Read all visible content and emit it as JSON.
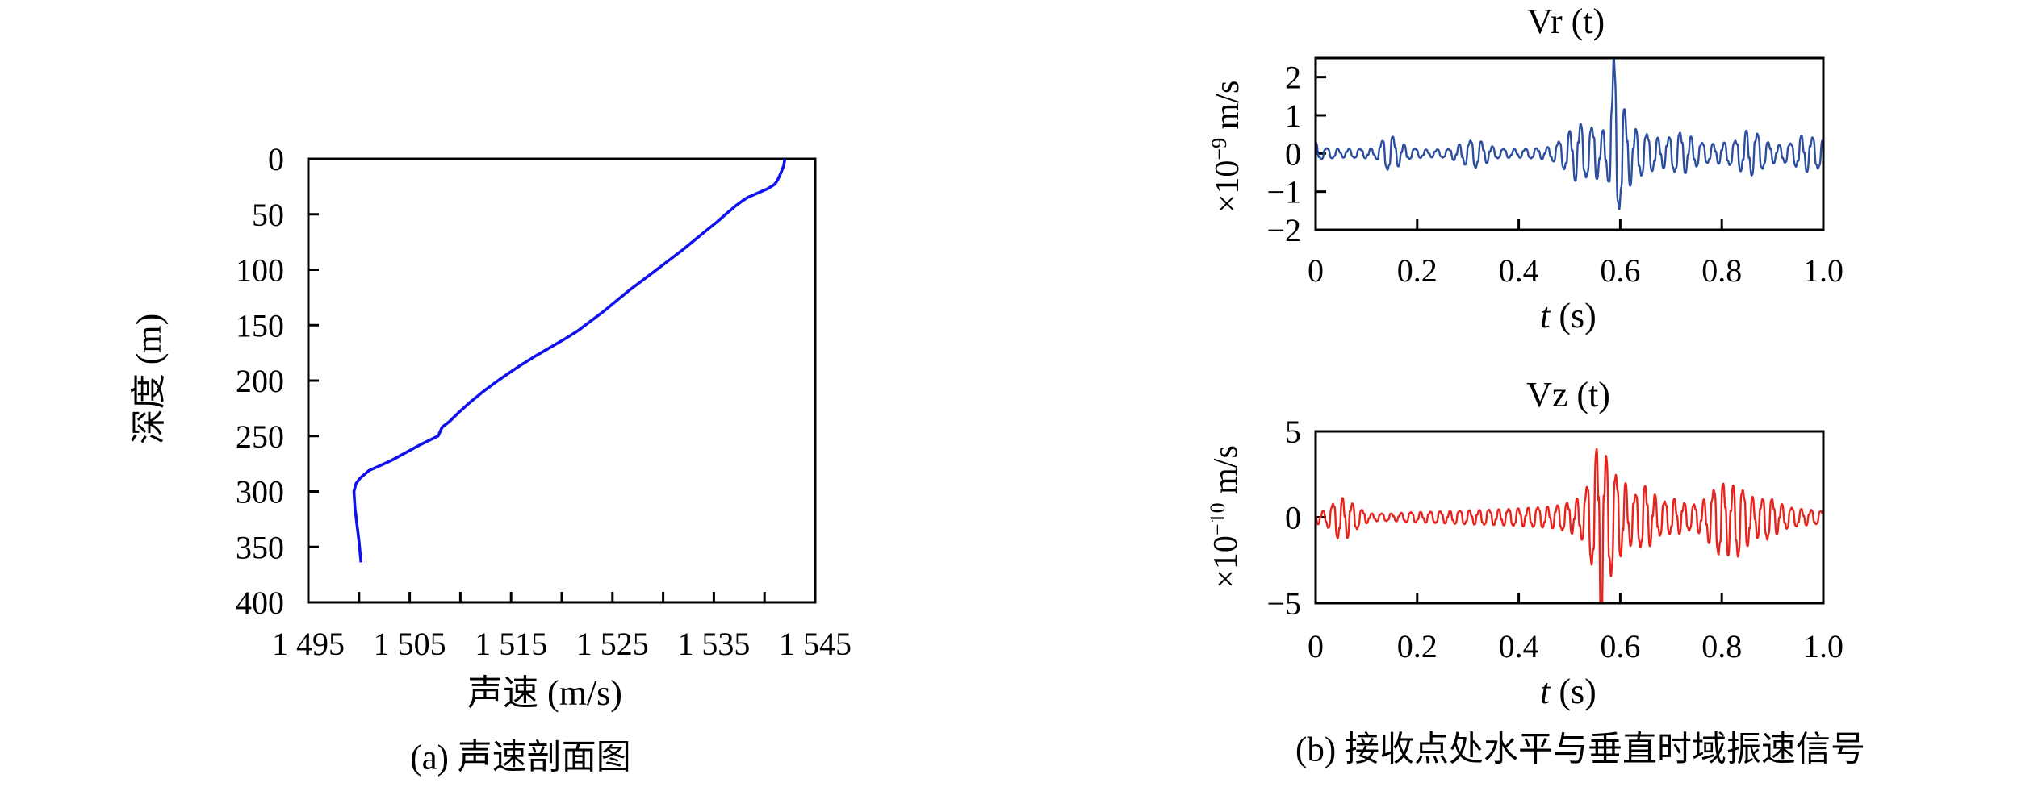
{
  "figure": {
    "panel_a": {
      "caption": "(a) 声速剖面图",
      "xlabel": "声速 (m/s)",
      "ylabel": "深度 (m)"
    },
    "panel_b": {
      "caption": "(b) 接收点处水平与垂直时域振速信号",
      "vr": {
        "title": "Vr (t)",
        "ylabel_prefix": "×10",
        "ylabel_exp": "−9",
        "ylabel_unit": " m/s",
        "xlabel_var": "t",
        "xlabel_unit": " (s)"
      },
      "vz": {
        "title": "Vz (t)",
        "ylabel_prefix": "×10",
        "ylabel_exp": "−10",
        "ylabel_unit": " m/s",
        "xlabel_var": "t",
        "xlabel_unit": " (s)"
      }
    }
  },
  "chart_data": [
    {
      "id": "sound-speed-profile",
      "type": "line",
      "title": "",
      "xlabel": "声速 (m/s)",
      "ylabel": "深度 (m)",
      "xlim": [
        1495,
        1545
      ],
      "ylim_depth": [
        0,
        400
      ],
      "y_axis_inverted": true,
      "grid": false,
      "line_color": "#1111ee",
      "xtick_values": [
        1495,
        1500,
        1505,
        1510,
        1515,
        1520,
        1525,
        1530,
        1535,
        1540,
        1545
      ],
      "xtick_labels": [
        "1 495",
        "",
        "1 505",
        "",
        "1 515",
        "",
        "1 525",
        "",
        "1 535",
        "",
        "1 545"
      ],
      "ytick_values": [
        0,
        50,
        100,
        150,
        200,
        250,
        300,
        350,
        400
      ],
      "ytick_labels": [
        "0",
        "50",
        "100",
        "150",
        "200",
        "250",
        "300",
        "350",
        "400"
      ],
      "series_name": "sound speed profile",
      "points_speed_depth": [
        [
          1542.0,
          0
        ],
        [
          1541.9,
          6
        ],
        [
          1541.6,
          13
        ],
        [
          1541.3,
          19
        ],
        [
          1541.0,
          23
        ],
        [
          1540.3,
          27
        ],
        [
          1539.3,
          31
        ],
        [
          1538.3,
          35
        ],
        [
          1537.8,
          38
        ],
        [
          1537.2,
          42
        ],
        [
          1536.3,
          49
        ],
        [
          1535.3,
          57
        ],
        [
          1534.2,
          65
        ],
        [
          1533.0,
          74
        ],
        [
          1531.8,
          83
        ],
        [
          1530.5,
          92
        ],
        [
          1529.2,
          101
        ],
        [
          1527.9,
          110
        ],
        [
          1526.6,
          119
        ],
        [
          1525.4,
          128
        ],
        [
          1524.2,
          137
        ],
        [
          1522.9,
          146
        ],
        [
          1521.6,
          155
        ],
        [
          1520.2,
          163
        ],
        [
          1518.7,
          171
        ],
        [
          1517.2,
          179
        ],
        [
          1515.8,
          187
        ],
        [
          1514.5,
          195
        ],
        [
          1513.4,
          202
        ],
        [
          1512.1,
          211
        ],
        [
          1510.9,
          220
        ],
        [
          1509.8,
          229
        ],
        [
          1508.9,
          237
        ],
        [
          1508.2,
          242
        ],
        [
          1507.8,
          250
        ],
        [
          1506.0,
          258
        ],
        [
          1504.6,
          265
        ],
        [
          1503.2,
          272
        ],
        [
          1502.0,
          277
        ],
        [
          1501.0,
          281
        ],
        [
          1500.1,
          288
        ],
        [
          1499.7,
          293
        ],
        [
          1499.5,
          300
        ],
        [
          1499.6,
          315
        ],
        [
          1499.8,
          330
        ],
        [
          1500.0,
          345
        ],
        [
          1500.2,
          364
        ]
      ]
    },
    {
      "id": "vr-signal",
      "type": "line",
      "title": "Vr (t)",
      "xlabel": "t (s)",
      "ylabel": "×10−9 m/s",
      "xlim": [
        0,
        1
      ],
      "ylim": [
        -2,
        2.5
      ],
      "grid": false,
      "line_color": "#2b4ea0",
      "xtick_values": [
        0,
        0.2,
        0.4,
        0.6,
        0.8,
        1.0
      ],
      "xtick_labels": [
        "0",
        "0.2",
        "0.4",
        "0.6",
        "0.8",
        "1.0"
      ],
      "ytick_values": [
        2,
        1,
        0,
        -1,
        -2
      ],
      "ytick_labels": [
        "2",
        "1",
        "0",
        "−1",
        "−2"
      ],
      "signal_model": {
        "carrier_hz": 46,
        "spike_time": 0.5872,
        "peak_value": 2.6,
        "min_value": -1.6,
        "envelope": [
          [
            0,
            0.3
          ],
          [
            0.01,
            0.15
          ],
          [
            0.05,
            0.11
          ],
          [
            0.09,
            0.12
          ],
          [
            0.12,
            0.14
          ],
          [
            0.135,
            0.4
          ],
          [
            0.15,
            0.46
          ],
          [
            0.165,
            0.32
          ],
          [
            0.185,
            0.14
          ],
          [
            0.22,
            0.1
          ],
          [
            0.26,
            0.11
          ],
          [
            0.295,
            0.3
          ],
          [
            0.315,
            0.38
          ],
          [
            0.335,
            0.26
          ],
          [
            0.36,
            0.12
          ],
          [
            0.4,
            0.11
          ],
          [
            0.44,
            0.14
          ],
          [
            0.465,
            0.18
          ],
          [
            0.49,
            0.42
          ],
          [
            0.505,
            0.66
          ],
          [
            0.52,
            0.8
          ],
          [
            0.535,
            0.6
          ],
          [
            0.55,
            0.74
          ],
          [
            0.565,
            0.58
          ],
          [
            0.578,
            1.0
          ],
          [
            0.5872,
            2.6
          ],
          [
            0.5955,
            1.7
          ],
          [
            0.605,
            1.3
          ],
          [
            0.617,
            0.85
          ],
          [
            0.633,
            0.6
          ],
          [
            0.65,
            0.52
          ],
          [
            0.665,
            0.44
          ],
          [
            0.685,
            0.38
          ],
          [
            0.7,
            0.44
          ],
          [
            0.72,
            0.56
          ],
          [
            0.735,
            0.48
          ],
          [
            0.755,
            0.3
          ],
          [
            0.775,
            0.24
          ],
          [
            0.8,
            0.28
          ],
          [
            0.825,
            0.32
          ],
          [
            0.85,
            0.62
          ],
          [
            0.87,
            0.52
          ],
          [
            0.89,
            0.3
          ],
          [
            0.915,
            0.22
          ],
          [
            0.94,
            0.28
          ],
          [
            0.962,
            0.52
          ],
          [
            0.978,
            0.42
          ],
          [
            1.0,
            0.38
          ]
        ],
        "neg_gain": [
          [
            0,
            1.0
          ],
          [
            0.55,
            1.0
          ],
          [
            0.585,
            0.7
          ],
          [
            0.6,
            0.95
          ],
          [
            0.62,
            1.05
          ],
          [
            0.7,
            1.0
          ],
          [
            1.0,
            1.0
          ]
        ]
      }
    },
    {
      "id": "vz-signal",
      "type": "line",
      "title": "Vz (t)",
      "xlabel": "t (s)",
      "ylabel": "×10−10 m/s",
      "xlim": [
        0,
        1
      ],
      "ylim": [
        -5,
        5
      ],
      "grid": false,
      "line_color": "#e8231c",
      "xtick_values": [
        0,
        0.2,
        0.4,
        0.6,
        0.8,
        1.0
      ],
      "xtick_labels": [
        "0",
        "0.2",
        "0.4",
        "0.6",
        "0.8",
        "1.0"
      ],
      "ytick_values": [
        5,
        0,
        -5
      ],
      "ytick_labels": [
        "5",
        "0",
        "−5"
      ],
      "signal_model": {
        "carrier_hz": 52,
        "spike_time": 0.553,
        "peak_value": 3.9,
        "min_value": -5.0,
        "envelope": [
          [
            0,
            0.35
          ],
          [
            0.02,
            0.4
          ],
          [
            0.04,
            0.95
          ],
          [
            0.055,
            1.15
          ],
          [
            0.07,
            0.85
          ],
          [
            0.09,
            0.45
          ],
          [
            0.11,
            0.22
          ],
          [
            0.15,
            0.22
          ],
          [
            0.19,
            0.3
          ],
          [
            0.23,
            0.33
          ],
          [
            0.27,
            0.38
          ],
          [
            0.31,
            0.42
          ],
          [
            0.35,
            0.45
          ],
          [
            0.39,
            0.5
          ],
          [
            0.42,
            0.55
          ],
          [
            0.45,
            0.6
          ],
          [
            0.47,
            0.65
          ],
          [
            0.49,
            0.8
          ],
          [
            0.51,
            1.0
          ],
          [
            0.53,
            1.4
          ],
          [
            0.545,
            2.8
          ],
          [
            0.553,
            3.9
          ],
          [
            0.558,
            5.2
          ],
          [
            0.565,
            4.5
          ],
          [
            0.575,
            3.2
          ],
          [
            0.585,
            2.6
          ],
          [
            0.595,
            2.4
          ],
          [
            0.605,
            2.2
          ],
          [
            0.615,
            1.8
          ],
          [
            0.63,
            1.3
          ],
          [
            0.645,
            1.9
          ],
          [
            0.66,
            1.6
          ],
          [
            0.675,
            1.1
          ],
          [
            0.69,
            0.9
          ],
          [
            0.705,
            1.1
          ],
          [
            0.72,
            0.9
          ],
          [
            0.74,
            0.7
          ],
          [
            0.76,
            0.9
          ],
          [
            0.78,
            1.5
          ],
          [
            0.8,
            2.0
          ],
          [
            0.815,
            1.8
          ],
          [
            0.83,
            1.9
          ],
          [
            0.845,
            1.5
          ],
          [
            0.86,
            1.2
          ],
          [
            0.875,
            1.0
          ],
          [
            0.89,
            1.2
          ],
          [
            0.91,
            0.9
          ],
          [
            0.93,
            0.6
          ],
          [
            0.95,
            0.5
          ],
          [
            0.97,
            0.45
          ],
          [
            1.0,
            0.35
          ]
        ],
        "neg_gain": [
          [
            0,
            1.1
          ],
          [
            0.05,
            1.25
          ],
          [
            0.09,
            1.1
          ],
          [
            0.13,
            1.0
          ],
          [
            0.5,
            1.0
          ],
          [
            0.553,
            1.05
          ],
          [
            0.56,
            1.35
          ],
          [
            0.58,
            1.25
          ],
          [
            0.6,
            1.0
          ],
          [
            0.64,
            1.05
          ],
          [
            0.7,
            1.0
          ],
          [
            0.76,
            1.1
          ],
          [
            0.8,
            1.2
          ],
          [
            0.84,
            1.25
          ],
          [
            0.88,
            1.1
          ],
          [
            1.0,
            1.0
          ]
        ]
      }
    }
  ]
}
